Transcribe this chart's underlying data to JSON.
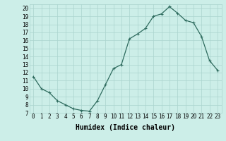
{
  "x": [
    0,
    1,
    2,
    3,
    4,
    5,
    6,
    7,
    8,
    9,
    10,
    11,
    12,
    13,
    14,
    15,
    16,
    17,
    18,
    19,
    20,
    21,
    22,
    23
  ],
  "y": [
    11.5,
    10.0,
    9.5,
    8.5,
    8.0,
    7.5,
    7.3,
    7.2,
    8.5,
    10.5,
    12.5,
    13.0,
    16.2,
    16.8,
    17.5,
    19.0,
    19.3,
    20.2,
    19.4,
    18.5,
    18.2,
    16.5,
    13.5,
    12.3
  ],
  "line_color": "#2e6b5e",
  "marker": "+",
  "marker_size": 3,
  "marker_lw": 0.8,
  "bg_color": "#cceee8",
  "grid_color": "#aad4ce",
  "xlabel": "Humidex (Indice chaleur)",
  "xlim": [
    -0.5,
    23.5
  ],
  "ylim": [
    7,
    20.5
  ],
  "yticks": [
    7,
    8,
    9,
    10,
    11,
    12,
    13,
    14,
    15,
    16,
    17,
    18,
    19,
    20
  ],
  "xticks": [
    0,
    1,
    2,
    3,
    4,
    5,
    6,
    7,
    8,
    9,
    10,
    11,
    12,
    13,
    14,
    15,
    16,
    17,
    18,
    19,
    20,
    21,
    22,
    23
  ],
  "tick_fontsize": 5.5,
  "xlabel_fontsize": 7,
  "linewidth": 0.9
}
